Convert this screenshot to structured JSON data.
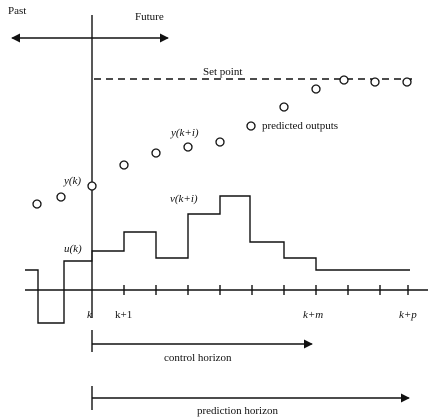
{
  "labels": {
    "past": "Past",
    "future": "Future",
    "set_point": "Set point",
    "predicted_outputs": "predicted outputs",
    "y_k": "y(k)",
    "y_k_plus_i": "y(k+i)",
    "v_k_plus_i": "v(k+i)",
    "u_k": "u(k)",
    "control_horizon": "control horizon",
    "prediction_horizon": "prediction horizon"
  },
  "axis_ticks": [
    "k",
    "k+1",
    "k+m",
    "k+p"
  ],
  "colors": {
    "ink": "#111111",
    "background": "#ffffff"
  }
}
